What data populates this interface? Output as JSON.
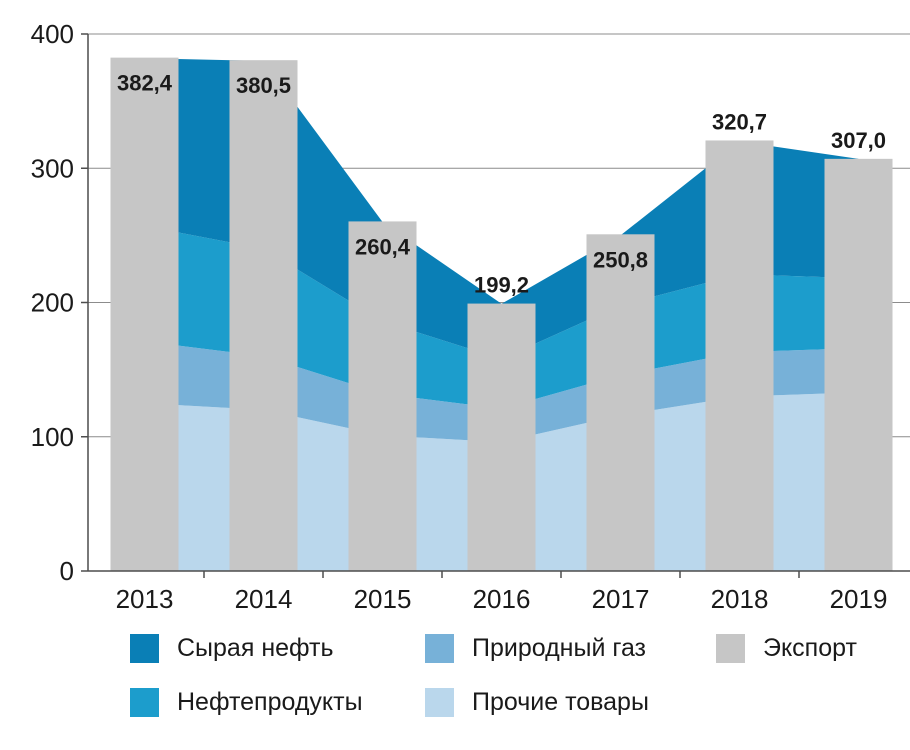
{
  "chart_data": {
    "type": "bar",
    "categories": [
      "2013",
      "2014",
      "2015",
      "2016",
      "2017",
      "2018",
      "2019"
    ],
    "ylim": [
      0,
      400
    ],
    "yticks": [
      0,
      100,
      200,
      300,
      400
    ],
    "grid": true,
    "legend_position": "bottom",
    "bar_series": {
      "name": "Экспорт",
      "color": "#c6c6c6",
      "values": [
        382.4,
        380.5,
        260.4,
        199.2,
        250.8,
        320.7,
        307.0
      ],
      "labels": [
        "382,4",
        "380,5",
        "260,4",
        "199,2",
        "250,8",
        "320,7",
        "307,0"
      ]
    },
    "area_series": [
      {
        "name": "Прочие товары",
        "color": "#bad7ec",
        "values": [
          125,
          120,
          101,
          96,
          116,
          130,
          133
        ]
      },
      {
        "name": "Природный газ",
        "color": "#77b1d8",
        "values": [
          46,
          40,
          31,
          25,
          30,
          33,
          33
        ]
      },
      {
        "name": "Нефтепродукты",
        "color": "#1c9dcc",
        "values": [
          86,
          80,
          54,
          37,
          52,
          58,
          52
        ]
      },
      {
        "name": "Сырая нефть",
        "color": "#0a7fb6",
        "values": [
          125,
          140,
          74,
          41,
          52,
          99,
          89
        ]
      }
    ]
  },
  "legend": {
    "items": [
      {
        "label": "Сырая нефть",
        "color": "#0a7fb6"
      },
      {
        "label": "Природный газ",
        "color": "#77b1d8"
      },
      {
        "label": "Экспорт",
        "color": "#c6c6c6"
      },
      {
        "label": "Нефтепродукты",
        "color": "#1c9dcc"
      },
      {
        "label": "Прочие товары",
        "color": "#bad7ec"
      }
    ]
  }
}
